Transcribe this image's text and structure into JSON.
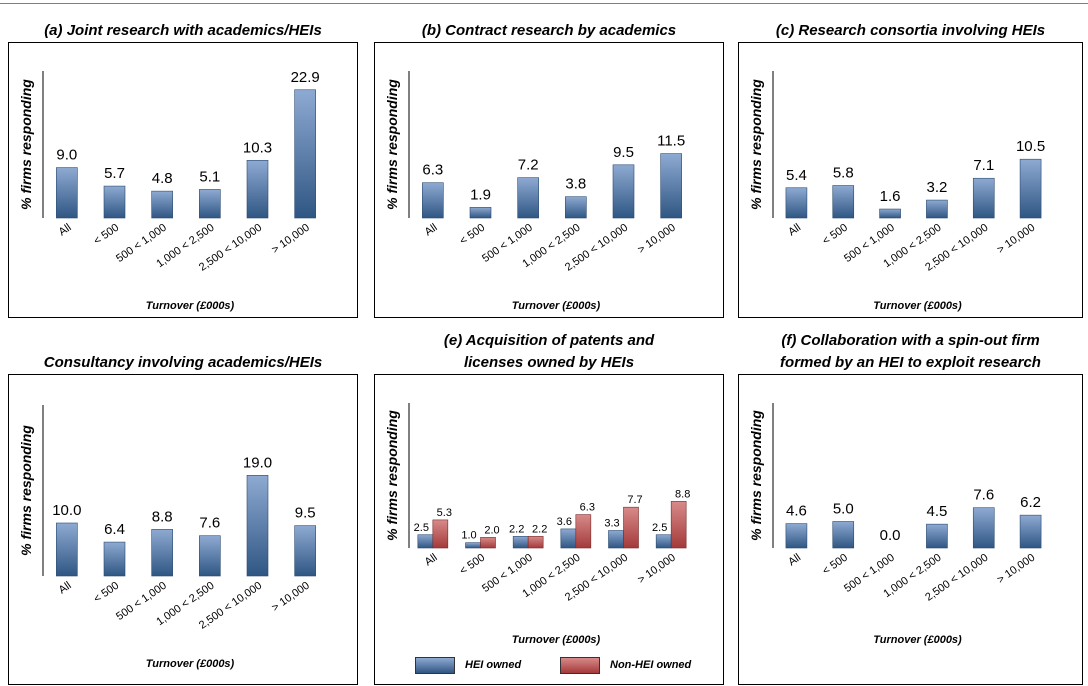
{
  "colors": {
    "hei": "#2f5683",
    "hei_light": "#8eaad2",
    "nonhei": "#a43a3a",
    "nonhei_light": "#d88a8a"
  },
  "legend": {
    "hei_label": "HEI owned",
    "nonhei_label": "Non-HEI owned"
  },
  "chart_data": [
    {
      "type": "bar",
      "title": "(a) Joint research  with academics/HEIs",
      "ylabel": "% firms responding",
      "xlabel": "Turnover (£000s)",
      "categories": [
        "All",
        "< 500",
        "500 < 1,000",
        "1,000 < 2,500",
        "2,500 < 10,000",
        "> 10,000"
      ],
      "series": [
        {
          "values": [
            9.0,
            5.7,
            4.8,
            5.1,
            10.3,
            22.9
          ]
        }
      ],
      "value_labels": [
        "9.0",
        "5.7",
        "4.8",
        "5.1",
        "10.3",
        "22.9"
      ]
    },
    {
      "type": "bar",
      "title": "(b) Contract  research  by academics",
      "ylabel": "% firms responding",
      "xlabel": "Turnover (£000s)",
      "categories": [
        "All",
        "< 500",
        "500 < 1,000",
        "1,000 < 2,500",
        "2,500 < 10,000",
        "> 10,000"
      ],
      "series": [
        {
          "values": [
            6.3,
            1.9,
            7.2,
            3.8,
            9.5,
            11.5
          ]
        }
      ],
      "value_labels": [
        "6.3",
        "1.9",
        "7.2",
        "3.8",
        "9.5",
        "11.5"
      ]
    },
    {
      "type": "bar",
      "title": "(c) Research  consortia  involving HEIs",
      "ylabel": "% firms responding",
      "xlabel": "Turnover (£000s)",
      "categories": [
        "All",
        "< 500",
        "500 < 1,000",
        "1,000 < 2,500",
        "2,500 < 10,000",
        "> 10,000"
      ],
      "series": [
        {
          "values": [
            5.4,
            5.8,
            1.6,
            3.2,
            7.1,
            10.5
          ]
        }
      ],
      "value_labels": [
        "5.4",
        "5.8",
        "1.6",
        "3.2",
        "7.1",
        "10.5"
      ]
    },
    {
      "type": "bar",
      "title": "Consultancy involving academics/HEIs",
      "ylabel": "% firms responding",
      "xlabel": "Turnover (£000s)",
      "categories": [
        "All",
        "< 500",
        "500 < 1,000",
        "1,000 < 2,500",
        "2,500 < 10,000",
        "> 10,000"
      ],
      "series": [
        {
          "values": [
            10.0,
            6.4,
            8.8,
            7.6,
            19.0,
            9.5
          ]
        }
      ],
      "value_labels": [
        "10.0",
        "6.4",
        "8.8",
        "7.6",
        "19.0",
        "9.5"
      ]
    },
    {
      "type": "bar",
      "title": "(e) Acquisition  of patents  and licenses  owned  by HEIs",
      "title_lines": [
        "(e) Acquisition  of patents  and",
        "licenses  owned  by HEIs"
      ],
      "ylabel": "% firms responding",
      "xlabel": "Turnover (£000s)",
      "categories": [
        "All",
        "< 500",
        "500 < 1,000",
        "1,000 < 2,500",
        "2,500 < 10,000",
        "> 10,000"
      ],
      "series": [
        {
          "name": "HEI owned",
          "values": [
            2.5,
            1.0,
            2.2,
            3.6,
            3.3,
            2.5
          ],
          "value_labels": [
            "2.5",
            "1.0",
            "2.2",
            "3.6",
            "3.3",
            "2.5"
          ]
        },
        {
          "name": "Non-HEI owned",
          "values": [
            5.3,
            2.0,
            2.2,
            6.3,
            7.7,
            8.8
          ],
          "value_labels": [
            "5.3",
            "2.0",
            "2.2",
            "6.3",
            "7.7",
            "8.8"
          ]
        }
      ]
    },
    {
      "type": "bar",
      "title": "(f) Collaboration  with  a spin-out firm formed  by an HEI to exploit research",
      "title_lines": [
        "(f) Collaboration  with  a spin-out firm",
        "formed  by an HEI to exploit research"
      ],
      "ylabel": "% firms responding",
      "xlabel": "Turnover (£000s)",
      "categories": [
        "All",
        "< 500",
        "500 < 1,000",
        "1,000 < 2,500",
        "2,500 < 10,000",
        "> 10,000"
      ],
      "series": [
        {
          "values": [
            4.6,
            5.0,
            0.0,
            4.5,
            7.6,
            6.2
          ]
        }
      ],
      "value_labels": [
        "4.6",
        "5.0",
        "0.0",
        "4.5",
        "7.6",
        "6.2"
      ]
    }
  ]
}
